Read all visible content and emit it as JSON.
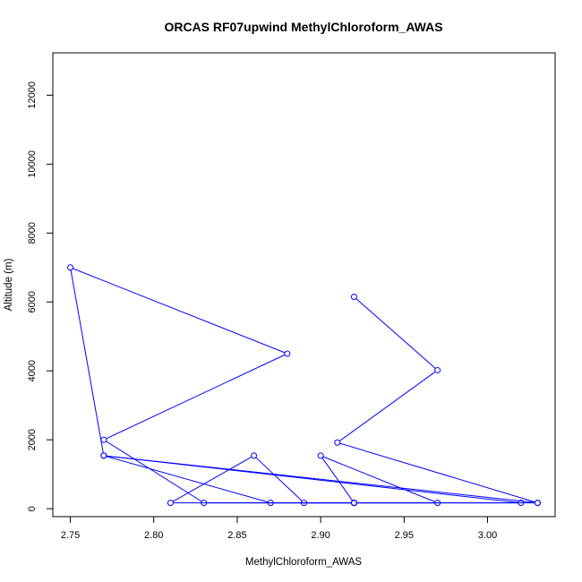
{
  "chart_data": {
    "type": "line",
    "title": "ORCAS RF07upwind MethylChloroform_AWAS",
    "xlabel": "MethylChloroform_AWAS",
    "ylabel": "Altitude (m)",
    "xlim": [
      2.7395,
      3.0405
    ],
    "ylim": [
      -230,
      13230
    ],
    "x_ticks": [
      2.75,
      2.8,
      2.85,
      2.9,
      2.95,
      3.0
    ],
    "x_tick_labels": [
      "2.75",
      "2.80",
      "2.85",
      "2.90",
      "2.95",
      "3.00"
    ],
    "y_ticks": [
      0,
      2000,
      4000,
      6000,
      8000,
      10000,
      12000
    ],
    "y_tick_labels": [
      "0",
      "2000",
      "4000",
      "6000",
      "8000",
      "10000",
      "12000"
    ],
    "grid": false,
    "color": "#0000ff",
    "series": [
      {
        "marker": "open-circle",
        "x": [
          2.92,
          2.97,
          2.91,
          3.03,
          2.92,
          2.9,
          2.97,
          2.92,
          2.81,
          2.86,
          2.89,
          2.92,
          2.83,
          2.77,
          2.88,
          2.75,
          2.77,
          2.87,
          2.92,
          3.02,
          2.77,
          3.03
        ],
        "y": [
          6150,
          4020,
          1920,
          170,
          170,
          1540,
          170,
          170,
          170,
          1540,
          170,
          170,
          170,
          2000,
          4500,
          7000,
          1540,
          170,
          170,
          170,
          1540,
          170
        ]
      }
    ]
  }
}
